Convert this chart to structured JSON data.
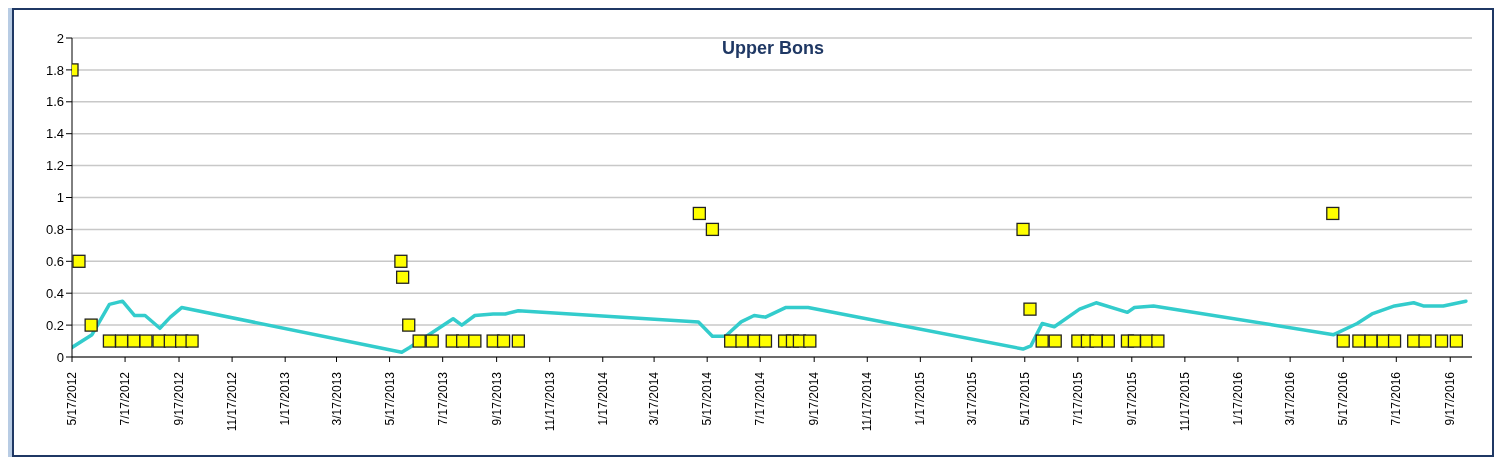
{
  "chart_data": {
    "type": "scatter",
    "title": "Upper Bons",
    "xlim": [
      "2012-05-17",
      "2016-10-12"
    ],
    "xticks": [
      {
        "value": "2012-05-17",
        "label": "5/17/2012"
      },
      {
        "value": "2012-07-17",
        "label": "7/17/2012"
      },
      {
        "value": "2012-09-17",
        "label": "9/17/2012"
      },
      {
        "value": "2012-11-17",
        "label": "11/17/2012"
      },
      {
        "value": "2013-01-17",
        "label": "1/17/2013"
      },
      {
        "value": "2013-03-17",
        "label": "3/17/2013"
      },
      {
        "value": "2013-05-17",
        "label": "5/17/2013"
      },
      {
        "value": "2013-07-17",
        "label": "7/17/2013"
      },
      {
        "value": "2013-09-17",
        "label": "9/17/2013"
      },
      {
        "value": "2013-11-17",
        "label": "11/17/2013"
      },
      {
        "value": "2014-01-17",
        "label": "1/17/2014"
      },
      {
        "value": "2014-03-17",
        "label": "3/17/2014"
      },
      {
        "value": "2014-05-17",
        "label": "5/17/2014"
      },
      {
        "value": "2014-07-17",
        "label": "7/17/2014"
      },
      {
        "value": "2014-09-17",
        "label": "9/17/2014"
      },
      {
        "value": "2014-11-17",
        "label": "11/17/2014"
      },
      {
        "value": "2015-01-17",
        "label": "1/17/2015"
      },
      {
        "value": "2015-03-17",
        "label": "3/17/2015"
      },
      {
        "value": "2015-05-17",
        "label": "5/17/2015"
      },
      {
        "value": "2015-07-17",
        "label": "7/17/2015"
      },
      {
        "value": "2015-09-17",
        "label": "9/17/2015"
      },
      {
        "value": "2015-11-17",
        "label": "11/17/2015"
      },
      {
        "value": "2016-01-17",
        "label": "1/17/2016"
      },
      {
        "value": "2016-03-17",
        "label": "3/17/2016"
      },
      {
        "value": "2016-05-17",
        "label": "5/17/2016"
      },
      {
        "value": "2016-07-17",
        "label": "7/17/2016"
      },
      {
        "value": "2016-09-17",
        "label": "9/17/2016"
      }
    ],
    "ylim": [
      0,
      2
    ],
    "yticks": [
      0,
      0.2,
      0.4,
      0.6,
      0.8,
      1,
      1.2,
      1.4,
      1.6,
      1.8,
      2
    ],
    "grid": "y",
    "series": [
      {
        "type": "scatter",
        "marker": "square",
        "color": "#ffff00",
        "x": [
          "2012-05-17",
          "2012-05-25",
          "2012-06-08",
          "2012-06-29",
          "2012-07-13",
          "2012-07-27",
          "2012-08-10",
          "2012-08-25",
          "2012-09-07",
          "2012-09-20",
          "2012-10-02",
          "2013-05-30",
          "2013-06-01",
          "2013-06-08",
          "2013-06-20",
          "2013-07-05",
          "2013-07-28",
          "2013-08-09",
          "2013-08-23",
          "2013-09-13",
          "2013-09-25",
          "2013-10-12",
          "2014-05-08",
          "2014-05-23",
          "2014-06-13",
          "2014-06-26",
          "2014-07-10",
          "2014-07-23",
          "2014-08-14",
          "2014-08-23",
          "2014-08-31",
          "2014-09-12",
          "2015-05-15",
          "2015-05-23",
          "2015-06-06",
          "2015-06-21",
          "2015-07-17",
          "2015-07-28",
          "2015-08-07",
          "2015-08-21",
          "2015-09-12",
          "2015-09-20",
          "2015-10-04",
          "2015-10-17",
          "2016-05-05",
          "2016-05-17",
          "2016-06-04",
          "2016-06-18",
          "2016-07-02",
          "2016-07-15",
          "2016-08-06",
          "2016-08-19",
          "2016-09-07",
          "2016-09-24"
        ],
        "values": [
          1.8,
          0.6,
          0.2,
          0.1,
          0.1,
          0.1,
          0.1,
          0.1,
          0.1,
          0.1,
          0.1,
          0.6,
          0.5,
          0.2,
          0.1,
          0.1,
          0.1,
          0.1,
          0.1,
          0.1,
          0.1,
          0.1,
          0.9,
          0.8,
          0.1,
          0.1,
          0.1,
          0.1,
          0.1,
          0.1,
          0.1,
          0.1,
          0.8,
          0.3,
          0.1,
          0.1,
          0.1,
          0.1,
          0.1,
          0.1,
          0.1,
          0.1,
          0.1,
          0.1,
          0.9,
          0.1,
          0.1,
          0.1,
          0.1,
          0.1,
          0.1,
          0.1,
          0.1,
          0.1
        ]
      },
      {
        "type": "line",
        "marker": "none",
        "line_style": "solid",
        "color": "#33cccc",
        "x": [
          "2012-05-17",
          "2012-06-09",
          "2012-06-29",
          "2012-07-14",
          "2012-07-28",
          "2012-08-09",
          "2012-08-26",
          "2012-09-07",
          "2012-09-20",
          "2013-05-31",
          "2013-06-09",
          "2013-07-29",
          "2013-08-08",
          "2013-08-23",
          "2013-09-13",
          "2013-09-27",
          "2013-10-12",
          "2014-05-07",
          "2014-05-23",
          "2014-06-07",
          "2014-06-25",
          "2014-07-10",
          "2014-07-23",
          "2014-08-15",
          "2014-09-10",
          "2015-05-15",
          "2015-05-24",
          "2015-06-06",
          "2015-06-20",
          "2015-07-19",
          "2015-08-07",
          "2015-09-12",
          "2015-09-20",
          "2015-10-12",
          "2016-05-06",
          "2016-06-02",
          "2016-06-19",
          "2016-07-15",
          "2016-08-06",
          "2016-08-17",
          "2016-09-09",
          "2016-10-05"
        ],
        "values": [
          0.06,
          0.14,
          0.33,
          0.35,
          0.26,
          0.26,
          0.18,
          0.25,
          0.31,
          0.03,
          0.06,
          0.24,
          0.2,
          0.26,
          0.27,
          0.27,
          0.29,
          0.22,
          0.13,
          0.13,
          0.22,
          0.26,
          0.25,
          0.31,
          0.31,
          0.05,
          0.07,
          0.21,
          0.19,
          0.3,
          0.34,
          0.28,
          0.31,
          0.32,
          0.14,
          0.21,
          0.27,
          0.32,
          0.34,
          0.32,
          0.32,
          0.35
        ]
      }
    ]
  }
}
